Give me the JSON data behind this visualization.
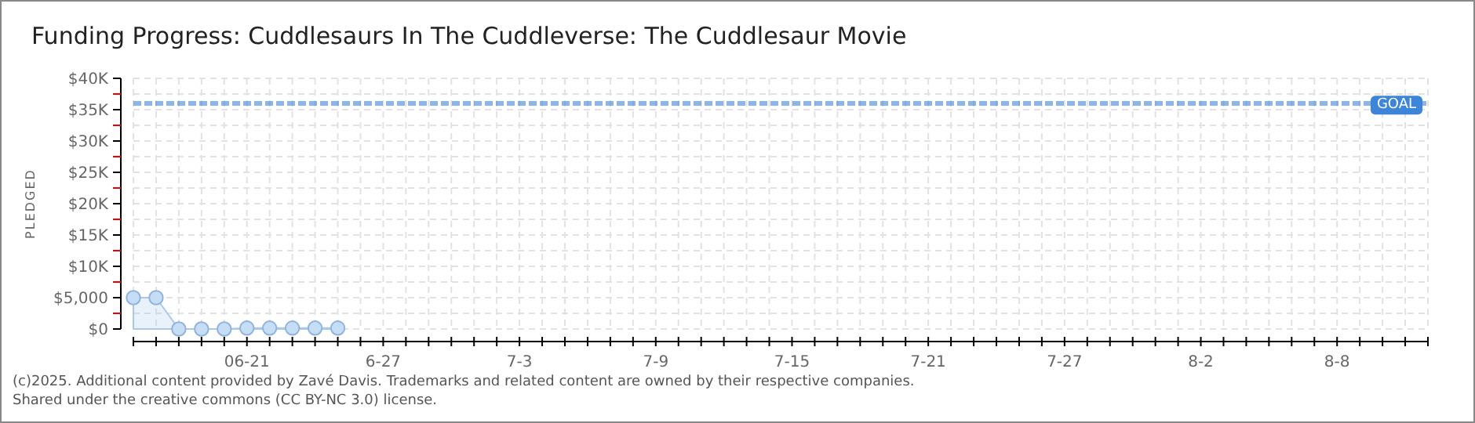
{
  "chart_data": {
    "type": "area",
    "title": "Funding Progress: Cuddlesaurs In The Cuddleverse: The Cuddlesaur Movie",
    "ylabel": "PLEDGED",
    "x": [
      "--06-16",
      "--06-17",
      "--06-18",
      "--06-19",
      "--06-20",
      "--06-21",
      "--06-22",
      "--06-23",
      "--06-24",
      "--06-25"
    ],
    "series": [
      {
        "color": "#a9c9ec",
        "values": [
          5000,
          5000,
          0,
          0,
          0,
          150,
          150,
          150,
          150,
          150
        ]
      }
    ],
    "marker": "circle",
    "grid": true,
    "ylim": [
      0,
      40000
    ],
    "yticks": [
      {
        "value": 0,
        "label": "$0"
      },
      {
        "value": 2500,
        "label": null
      },
      {
        "value": 5000,
        "label": "$5,000"
      },
      {
        "value": 7500,
        "label": null
      },
      {
        "value": 10000,
        "label": "$10K"
      },
      {
        "value": 12500,
        "label": null
      },
      {
        "value": 15000,
        "label": "$15K"
      },
      {
        "value": 17500,
        "label": null
      },
      {
        "value": 20000,
        "label": "$20K"
      },
      {
        "value": 22500,
        "label": null
      },
      {
        "value": 25000,
        "label": "$25K"
      },
      {
        "value": 27500,
        "label": null
      },
      {
        "value": 30000,
        "label": "$30K"
      },
      {
        "value": 32500,
        "label": null
      },
      {
        "value": 35000,
        "label": "$35K"
      },
      {
        "value": 37500,
        "label": null
      },
      {
        "value": 40000,
        "label": "$40K"
      }
    ],
    "xlim": [
      "--06-16",
      "--08-12"
    ],
    "xticks": [
      {
        "value": "--06-16",
        "label": null
      },
      {
        "value": "--06-17",
        "label": null
      },
      {
        "value": "--06-18",
        "label": null
      },
      {
        "value": "--06-19",
        "label": null
      },
      {
        "value": "--06-20",
        "label": null
      },
      {
        "value": "--06-21",
        "label": "06-21"
      },
      {
        "value": "--06-22",
        "label": null
      },
      {
        "value": "--06-23",
        "label": null
      },
      {
        "value": "--06-24",
        "label": null
      },
      {
        "value": "--06-25",
        "label": null
      },
      {
        "value": "--06-26",
        "label": null
      },
      {
        "value": "--06-27",
        "label": "6-27"
      },
      {
        "value": "--06-28",
        "label": null
      },
      {
        "value": "--06-29",
        "label": null
      },
      {
        "value": "--06-30",
        "label": null
      },
      {
        "value": "--07-01",
        "label": null
      },
      {
        "value": "--07-02",
        "label": null
      },
      {
        "value": "--07-03",
        "label": "7-3"
      },
      {
        "value": "--07-04",
        "label": null
      },
      {
        "value": "--07-05",
        "label": null
      },
      {
        "value": "--07-06",
        "label": null
      },
      {
        "value": "--07-07",
        "label": null
      },
      {
        "value": "--07-08",
        "label": null
      },
      {
        "value": "--07-09",
        "label": "7-9"
      },
      {
        "value": "--07-10",
        "label": null
      },
      {
        "value": "--07-11",
        "label": null
      },
      {
        "value": "--07-12",
        "label": null
      },
      {
        "value": "--07-13",
        "label": null
      },
      {
        "value": "--07-14",
        "label": null
      },
      {
        "value": "--07-15",
        "label": "7-15"
      },
      {
        "value": "--07-16",
        "label": null
      },
      {
        "value": "--07-17",
        "label": null
      },
      {
        "value": "--07-18",
        "label": null
      },
      {
        "value": "--07-19",
        "label": null
      },
      {
        "value": "--07-20",
        "label": null
      },
      {
        "value": "--07-21",
        "label": "7-21"
      },
      {
        "value": "--07-22",
        "label": null
      },
      {
        "value": "--07-23",
        "label": null
      },
      {
        "value": "--07-24",
        "label": null
      },
      {
        "value": "--07-25",
        "label": null
      },
      {
        "value": "--07-26",
        "label": null
      },
      {
        "value": "--07-27",
        "label": "7-27"
      },
      {
        "value": "--07-28",
        "label": null
      },
      {
        "value": "--07-29",
        "label": null
      },
      {
        "value": "--07-30",
        "label": null
      },
      {
        "value": "--07-31",
        "label": null
      },
      {
        "value": "--08-01",
        "label": null
      },
      {
        "value": "--08-02",
        "label": "8-2"
      },
      {
        "value": "--08-03",
        "label": null
      },
      {
        "value": "--08-04",
        "label": null
      },
      {
        "value": "--08-05",
        "label": null
      },
      {
        "value": "--08-06",
        "label": null
      },
      {
        "value": "--08-07",
        "label": null
      },
      {
        "value": "--08-08",
        "label": "8-8"
      },
      {
        "value": "--08-09",
        "label": null
      },
      {
        "value": "--08-10",
        "label": null
      },
      {
        "value": "--08-11",
        "label": null
      },
      {
        "value": "--08-12",
        "label": null
      }
    ],
    "ref_lines": [
      {
        "axis": "y",
        "value": 36000,
        "label": "GOAL",
        "color": "#3d85d8",
        "line_style": "dashed"
      }
    ],
    "annotations": [
      "(c)2025. Additional content provided by Zavé Davis. Trademarks and related content are owned by their respective companies.",
      "Shared under the creative commons (CC BY-NC 3.0) license."
    ]
  }
}
